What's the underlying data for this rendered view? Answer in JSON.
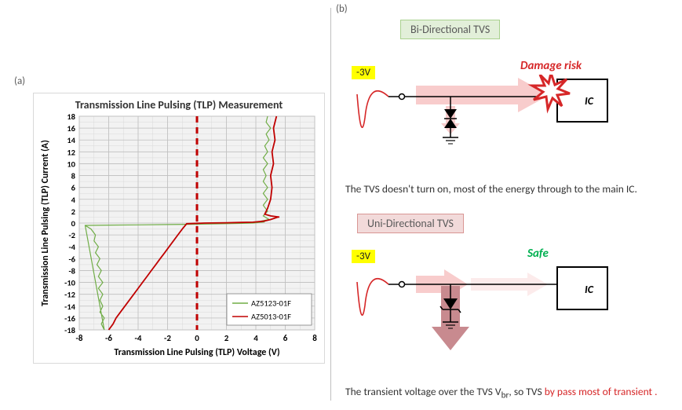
{
  "labels": {
    "panel_a": "(a)",
    "panel_b": "(b)"
  },
  "chart": {
    "type": "line",
    "title": "Transmission Line Pulsing (TLP) Measurement",
    "xlabel": "Transmission Line Pulsing (TLP) Voltage (V)",
    "ylabel": "Transmission Line Pulsing (TLP) Current (A)",
    "title_fontsize": 14,
    "label_fontsize": 12,
    "xlim": [
      -8,
      8
    ],
    "ylim": [
      -18,
      18
    ],
    "xtick_step": 2,
    "ytick_step": 2,
    "background_color": "#ffffff",
    "plot_bg_color": "#f2f2f2",
    "grid_major_color": "#bfbfbf",
    "grid_minor_color": "#d9d9d9",
    "legend": {
      "position": "bottom-right",
      "items": [
        {
          "label": "AZ5123-01F",
          "color": "#70ad47"
        },
        {
          "label": "AZ5013-01F",
          "color": "#c00000"
        }
      ]
    },
    "dashed_ref": {
      "x": 0,
      "color": "#c00000",
      "dash": "8,6",
      "width": 3
    },
    "series": [
      {
        "name": "AZ5123-01F",
        "color": "#70ad47",
        "line_width": 1.2,
        "points": [
          [
            -7.6,
            -0.4
          ],
          [
            -7.2,
            -1.0
          ],
          [
            -6.9,
            -2.0
          ],
          [
            -7.0,
            -3.0
          ],
          [
            -6.7,
            -4.0
          ],
          [
            -6.9,
            -5.0
          ],
          [
            -6.6,
            -6.0
          ],
          [
            -6.8,
            -7.0
          ],
          [
            -6.5,
            -8.0
          ],
          [
            -6.7,
            -9.0
          ],
          [
            -6.4,
            -10.0
          ],
          [
            -6.7,
            -11.0
          ],
          [
            -6.4,
            -12.0
          ],
          [
            -6.6,
            -13.0
          ],
          [
            -6.4,
            -14.0
          ],
          [
            -6.6,
            -15.0
          ],
          [
            -6.3,
            -16.0
          ],
          [
            -6.5,
            -17.0
          ],
          [
            -6.3,
            -18.0
          ],
          [
            -7.6,
            -0.4
          ],
          [
            -6.0,
            -0.35
          ],
          [
            -4.0,
            -0.3
          ],
          [
            -2.0,
            -0.25
          ],
          [
            0.0,
            -0.2
          ],
          [
            2.0,
            -0.1
          ],
          [
            3.0,
            -0.05
          ],
          [
            3.8,
            0.0
          ],
          [
            3.8,
            0.0
          ],
          [
            4.6,
            0.2
          ],
          [
            4.3,
            0.3
          ],
          [
            4.9,
            0.6
          ],
          [
            4.5,
            1.2
          ],
          [
            4.8,
            2.0
          ],
          [
            4.5,
            3.0
          ],
          [
            4.8,
            4.0
          ],
          [
            4.5,
            5.0
          ],
          [
            4.8,
            6.0
          ],
          [
            4.5,
            7.0
          ],
          [
            4.7,
            8.0
          ],
          [
            4.5,
            9.0
          ],
          [
            4.8,
            10.0
          ],
          [
            4.5,
            11.0
          ],
          [
            4.8,
            12.0
          ],
          [
            4.6,
            13.0
          ],
          [
            4.9,
            14.0
          ],
          [
            4.7,
            15.0
          ],
          [
            5.0,
            16.0
          ],
          [
            4.7,
            17.0
          ],
          [
            4.8,
            18.0
          ]
        ]
      },
      {
        "name": "AZ5013-01F",
        "color": "#c00000",
        "line_width": 1.8,
        "points": [
          [
            -6.0,
            -18.0
          ],
          [
            -5.7,
            -17.0
          ],
          [
            -5.5,
            -16.0
          ],
          [
            -5.2,
            -15.0
          ],
          [
            -4.9,
            -14.0
          ],
          [
            -4.6,
            -13.0
          ],
          [
            -4.3,
            -12.0
          ],
          [
            -4.0,
            -11.0
          ],
          [
            -3.7,
            -10.0
          ],
          [
            -3.4,
            -9.0
          ],
          [
            -3.1,
            -8.0
          ],
          [
            -2.8,
            -7.0
          ],
          [
            -2.5,
            -6.0
          ],
          [
            -2.2,
            -5.0
          ],
          [
            -1.9,
            -4.0
          ],
          [
            -1.6,
            -3.0
          ],
          [
            -1.3,
            -2.0
          ],
          [
            -1.0,
            -1.0
          ],
          [
            -0.7,
            -0.1
          ],
          [
            -0.7,
            -0.1
          ],
          [
            0.5,
            0.0
          ],
          [
            2.0,
            0.05
          ],
          [
            3.0,
            0.1
          ],
          [
            3.8,
            0.15
          ],
          [
            3.8,
            0.15
          ],
          [
            4.5,
            0.3
          ],
          [
            5.0,
            0.6
          ],
          [
            5.5,
            1.0
          ],
          [
            5.6,
            1.0
          ],
          [
            5.0,
            1.2
          ],
          [
            4.6,
            1.5
          ],
          [
            4.8,
            2.5
          ],
          [
            5.0,
            4.0
          ],
          [
            5.1,
            6.0
          ],
          [
            5.0,
            8.0
          ],
          [
            5.2,
            10.0
          ],
          [
            5.1,
            12.0
          ],
          [
            5.3,
            14.0
          ],
          [
            5.2,
            16.0
          ],
          [
            5.4,
            18.0
          ]
        ]
      }
    ]
  },
  "panel_b": {
    "bi": {
      "heading": "Bi-Directional TVS",
      "heading_bg": "#e2efd9",
      "heading_border": "#a9d18e",
      "voltage_label": "-3V",
      "status": "Damage risk",
      "status_color": "#d62728",
      "ic_label": "IC",
      "caption_plain": "The TVS doesn't turn on, most of the energy through to the main IC.",
      "caption_highlight": ""
    },
    "uni": {
      "heading": "Uni-Directional TVS",
      "heading_bg": "#f2dada",
      "heading_border": "#d99694",
      "voltage_label": "-3V",
      "status": "Safe",
      "status_color": "#00b050",
      "ic_label": "IC",
      "caption_plain": "The transient voltage over the TVS V",
      "caption_sub": "br",
      "caption_plain2": ", so TVS  ",
      "caption_highlight": "by pass most of transient ."
    },
    "colors": {
      "pulse_stroke": "#d62728",
      "arrow_fill": "#f8cccc",
      "arrow_fill_dark": "#c88a8f",
      "circuit_stroke": "#000000",
      "ic_bg": "#ffffff"
    }
  }
}
